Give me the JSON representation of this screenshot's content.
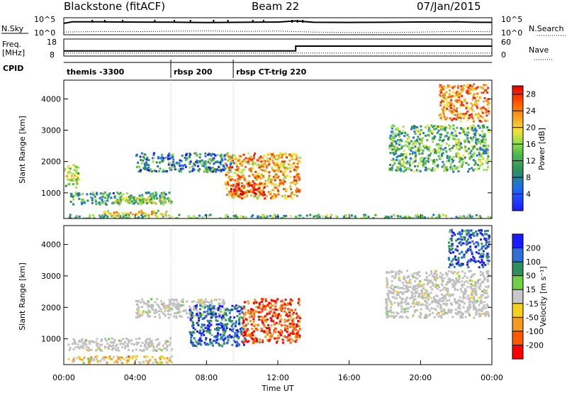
{
  "header": {
    "station": "Blackstone (fitACF)",
    "beam": "Beam 22",
    "date": "07/Jan/2015"
  },
  "side_labels": {
    "nsky": "N.Sky",
    "nsearch": "N.Search",
    "freq": "Freq.",
    "freq_unit": "[MHz]",
    "nave": "Nave",
    "cpid": "CPID",
    "noise_ticks_left": [
      "10^5",
      "10^0"
    ],
    "noise_ticks_right": [
      "10^5",
      "10^0"
    ],
    "freq_ticks": [
      "18",
      "8"
    ],
    "nave_ticks": [
      "60",
      "0"
    ]
  },
  "cpid_segments": [
    {
      "label": "themis -3300",
      "start_hour": 0
    },
    {
      "label": "rbsp 200",
      "start_hour": 6
    },
    {
      "label": "rbsp CT-trig 220",
      "start_hour": 9.5
    }
  ],
  "power_panel": {
    "ylabel": "Slant Range [km]",
    "yticks": [
      "1000",
      "2000",
      "3000",
      "4000"
    ],
    "colorbar_label": "Power [dB]",
    "colorbar_ticks": [
      "4",
      "8",
      "12",
      "16",
      "20",
      "24",
      "28"
    ],
    "colors": [
      "#1a1aff",
      "#1e6ef0",
      "#2f8f5a",
      "#4fb84f",
      "#9be04a",
      "#f2e13a",
      "#f5a623",
      "#ff6a00",
      "#ff2a00",
      "#e00000"
    ]
  },
  "velocity_panel": {
    "ylabel": "Slant Range [km]",
    "yticks": [
      "1000",
      "2000",
      "3000",
      "4000"
    ],
    "colorbar_label": "Velocity [m s⁻¹]",
    "colorbar_ticks": [
      "200",
      "100",
      "50",
      "15",
      "-15",
      "-50",
      "-100",
      "-200"
    ],
    "ground_scatter_color": "#c0c0c0",
    "colors": [
      "#1a1aff",
      "#2f6fd6",
      "#2f8f5a",
      "#6fd04a",
      "#c8c8c8",
      "#f5d020",
      "#f59a20",
      "#ff5a00",
      "#ff0000"
    ]
  },
  "time_axis": {
    "xlabel": "Time UT",
    "ticks": [
      "00:00",
      "04:00",
      "08:00",
      "12:00",
      "16:00",
      "20:00",
      "00:00"
    ]
  },
  "chart_data": [
    {
      "type": "line",
      "title": "Blackstone (fitACF) Beam 22 07/Jan/2015",
      "xlabel": "",
      "ylabel": "N.Sky",
      "x_range_hours": [
        0,
        24
      ],
      "y_scale": "log",
      "ylim": [
        "10^0",
        "10^5"
      ],
      "series": [
        {
          "name": "N.Sky",
          "x": [
            0,
            0.5,
            2,
            4,
            6,
            8,
            10,
            12,
            13,
            14,
            16,
            18,
            20,
            22,
            23,
            24
          ],
          "values": [
            5000,
            20000,
            20000,
            15000,
            14000,
            10000,
            13000,
            15000,
            40000,
            13000,
            11000,
            13000,
            16000,
            18000,
            13000,
            12000
          ]
        },
        {
          "name": "N.Search",
          "x": [
            0,
            2,
            4,
            6,
            8,
            10,
            12,
            14,
            16,
            18,
            20,
            22,
            24
          ],
          "values": [
            3,
            5,
            4,
            6,
            8,
            5,
            7,
            3,
            2,
            2,
            3,
            5,
            4
          ]
        }
      ]
    },
    {
      "type": "line",
      "title": "",
      "xlabel": "",
      "ylabel": "Freq. [MHz]",
      "x_range_hours": [
        0,
        24
      ],
      "series": [
        {
          "name": "Freq.",
          "x": [
            0,
            13,
            13,
            24
          ],
          "values": [
            10.5,
            10.5,
            14.5,
            14.5
          ]
        },
        {
          "name": "Nave",
          "x": [
            0,
            24
          ],
          "values": [
            4,
            4
          ]
        }
      ]
    },
    {
      "type": "heatmap",
      "title": "",
      "xlabel": "",
      "ylabel": "Slant Range [km]",
      "x_range_hours": [
        0,
        24
      ],
      "ylim": [
        180,
        4600
      ],
      "colorbar": {
        "label": "Power [dB]",
        "range": [
          0,
          30
        ]
      },
      "echo_regions": [
        {
          "t_start": 0.0,
          "t_end": 0.8,
          "r_min": 1200,
          "r_max": 2000,
          "power_db": 14
        },
        {
          "t_start": 0.3,
          "t_end": 6.0,
          "r_min": 650,
          "r_max": 1050,
          "power_db": 8
        },
        {
          "t_start": 2.8,
          "t_end": 5.8,
          "r_min": 680,
          "r_max": 920,
          "power_db": 14
        },
        {
          "t_start": 2.0,
          "t_end": 5.8,
          "r_min": 300,
          "r_max": 460,
          "power_db": 18
        },
        {
          "t_start": 0.2,
          "t_end": 24.0,
          "r_min": 180,
          "r_max": 330,
          "power_db": 10
        },
        {
          "t_start": 4.0,
          "t_end": 9.5,
          "r_min": 1700,
          "r_max": 2300,
          "power_db": 6
        },
        {
          "t_start": 9.0,
          "t_end": 13.2,
          "r_min": 850,
          "r_max": 2300,
          "power_db": 20
        },
        {
          "t_start": 9.3,
          "t_end": 11.2,
          "r_min": 950,
          "r_max": 1350,
          "power_db": 28
        },
        {
          "t_start": 18.2,
          "t_end": 23.8,
          "r_min": 1700,
          "r_max": 3200,
          "power_db": 10
        },
        {
          "t_start": 21.0,
          "t_end": 23.8,
          "r_min": 3300,
          "r_max": 4500,
          "power_db": 22
        }
      ]
    },
    {
      "type": "heatmap",
      "title": "",
      "xlabel": "Time UT",
      "ylabel": "Slant Range [km]",
      "x_range_hours": [
        0,
        24
      ],
      "ylim": [
        180,
        4600
      ],
      "colorbar": {
        "label": "Velocity [m s⁻¹]",
        "range": [
          -200,
          200
        ]
      },
      "echo_regions": [
        {
          "t_start": 0.2,
          "t_end": 6.0,
          "r_min": 650,
          "r_max": 1050,
          "velocity": 0,
          "ground_scatter": true
        },
        {
          "t_start": 0.2,
          "t_end": 6.0,
          "r_min": 250,
          "r_max": 480,
          "velocity": -50
        },
        {
          "t_start": 4.0,
          "t_end": 9.0,
          "r_min": 1700,
          "r_max": 2300,
          "velocity": 0,
          "ground_scatter": true
        },
        {
          "t_start": 7.0,
          "t_end": 10.2,
          "r_min": 800,
          "r_max": 2100,
          "velocity": 150
        },
        {
          "t_start": 10.0,
          "t_end": 13.2,
          "r_min": 900,
          "r_max": 2300,
          "velocity": -150
        },
        {
          "t_start": 18.0,
          "t_end": 23.8,
          "r_min": 1700,
          "r_max": 3200,
          "velocity": 0,
          "ground_scatter": true
        },
        {
          "t_start": 21.5,
          "t_end": 23.8,
          "r_min": 3300,
          "r_max": 4500,
          "velocity": 150
        }
      ]
    }
  ]
}
